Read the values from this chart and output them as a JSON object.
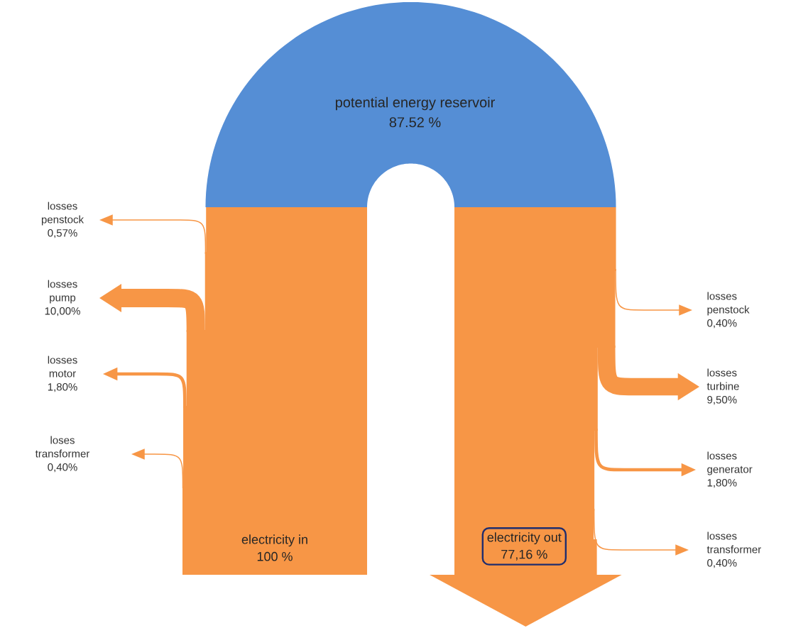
{
  "chart_data": {
    "type": "other",
    "categories": [
      "losses penstock",
      "losses pump",
      "losses motor",
      "loses transformer",
      "electricity in",
      "potential energy reservoir",
      "losses penstock",
      "losses turbine",
      "losses generator",
      "losses transformer",
      "electricity out"
    ],
    "values": [
      0.57,
      10.0,
      1.8,
      0.4,
      100,
      87.52,
      0.4,
      9.5,
      1.8,
      0.4,
      77.16
    ],
    "value_labels": [
      "0,57%",
      "10,00%",
      "1,80%",
      "0,40%",
      "100 %",
      "87.52 %",
      "0,40%",
      "9,50%",
      "1,80%",
      "0,40%",
      "77,16 %"
    ],
    "colors": [
      "#f79646",
      "#f79646",
      "#f79646",
      "#f79646",
      "#f79646",
      "#558ed5",
      "#f79646",
      "#f79646",
      "#f79646",
      "#f79646",
      "#f79646"
    ]
  }
}
